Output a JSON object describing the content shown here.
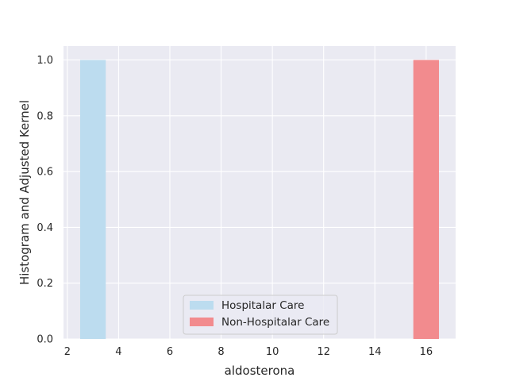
{
  "chart_data": {
    "type": "bar",
    "xlabel": "aldosterona",
    "ylabel": "Histogram and Adjusted Kernel",
    "xlim": [
      1.85,
      17.15
    ],
    "ylim": [
      0,
      1.05
    ],
    "xticks": [
      2,
      4,
      6,
      8,
      10,
      12,
      14,
      16
    ],
    "yticks": [
      0.0,
      0.2,
      0.4,
      0.6,
      0.8,
      1.0
    ],
    "xtick_labels": [
      "2",
      "4",
      "6",
      "8",
      "10",
      "12",
      "14",
      "16"
    ],
    "ytick_labels": [
      "0.0",
      "0.2",
      "0.4",
      "0.6",
      "0.8",
      "1.0"
    ],
    "grid": true,
    "legend_position": "lower-center",
    "series": [
      {
        "name": "Hospitalar Care",
        "color": "#bcdcef",
        "bins": [
          {
            "x0": 2.5,
            "x1": 3.5,
            "value": 1.0
          }
        ]
      },
      {
        "name": "Non-Hospitalar Care",
        "color": "#f28b8e",
        "bins": [
          {
            "x0": 15.5,
            "x1": 16.5,
            "value": 1.0
          }
        ]
      }
    ]
  },
  "style": {
    "plot_background": "#eaeaf2",
    "grid_color": "#ffffff"
  }
}
